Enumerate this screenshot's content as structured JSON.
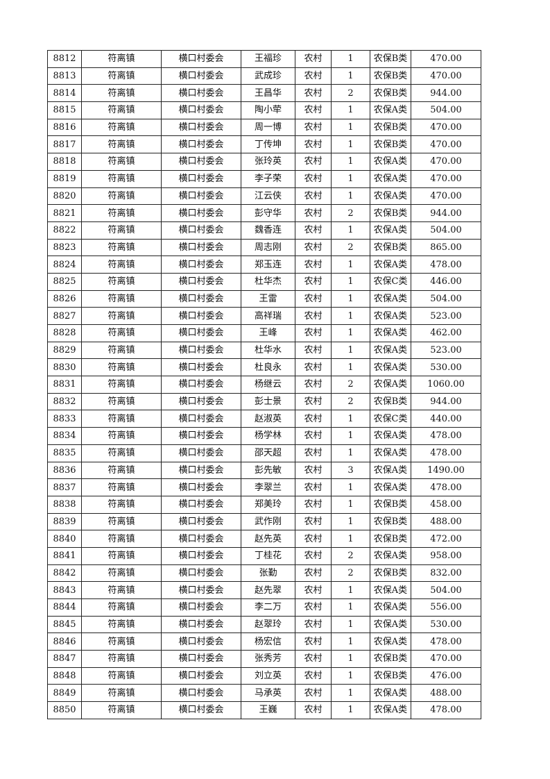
{
  "table": {
    "rows": [
      [
        "8812",
        "符离镇",
        "横口村委会",
        "王福珍",
        "农村",
        "1",
        "农保B类",
        "470.00"
      ],
      [
        "8813",
        "符离镇",
        "横口村委会",
        "武成珍",
        "农村",
        "1",
        "农保B类",
        "470.00"
      ],
      [
        "8814",
        "符离镇",
        "横口村委会",
        "王昌华",
        "农村",
        "2",
        "农保B类",
        "944.00"
      ],
      [
        "8815",
        "符离镇",
        "横口村委会",
        "陶小荦",
        "农村",
        "1",
        "农保A类",
        "504.00"
      ],
      [
        "8816",
        "符离镇",
        "横口村委会",
        "周一博",
        "农村",
        "1",
        "农保B类",
        "470.00"
      ],
      [
        "8817",
        "符离镇",
        "横口村委会",
        "丁传坤",
        "农村",
        "1",
        "农保B类",
        "470.00"
      ],
      [
        "8818",
        "符离镇",
        "横口村委会",
        "张玲英",
        "农村",
        "1",
        "农保A类",
        "470.00"
      ],
      [
        "8819",
        "符离镇",
        "横口村委会",
        "李子荣",
        "农村",
        "1",
        "农保A类",
        "470.00"
      ],
      [
        "8820",
        "符离镇",
        "横口村委会",
        "江云侠",
        "农村",
        "1",
        "农保A类",
        "470.00"
      ],
      [
        "8821",
        "符离镇",
        "横口村委会",
        "彭守华",
        "农村",
        "2",
        "农保B类",
        "944.00"
      ],
      [
        "8822",
        "符离镇",
        "横口村委会",
        "魏香连",
        "农村",
        "1",
        "农保A类",
        "504.00"
      ],
      [
        "8823",
        "符离镇",
        "横口村委会",
        "周志刚",
        "农村",
        "2",
        "农保B类",
        "865.00"
      ],
      [
        "8824",
        "符离镇",
        "横口村委会",
        "郑玉连",
        "农村",
        "1",
        "农保A类",
        "478.00"
      ],
      [
        "8825",
        "符离镇",
        "横口村委会",
        "杜华杰",
        "农村",
        "1",
        "农保C类",
        "446.00"
      ],
      [
        "8826",
        "符离镇",
        "横口村委会",
        "王雷",
        "农村",
        "1",
        "农保A类",
        "504.00"
      ],
      [
        "8827",
        "符离镇",
        "横口村委会",
        "高祥瑞",
        "农村",
        "1",
        "农保A类",
        "523.00"
      ],
      [
        "8828",
        "符离镇",
        "横口村委会",
        "王峰",
        "农村",
        "1",
        "农保A类",
        "462.00"
      ],
      [
        "8829",
        "符离镇",
        "横口村委会",
        "杜华水",
        "农村",
        "1",
        "农保A类",
        "523.00"
      ],
      [
        "8830",
        "符离镇",
        "横口村委会",
        "杜良永",
        "农村",
        "1",
        "农保A类",
        "530.00"
      ],
      [
        "8831",
        "符离镇",
        "横口村委会",
        "杨继云",
        "农村",
        "2",
        "农保A类",
        "1060.00"
      ],
      [
        "8832",
        "符离镇",
        "横口村委会",
        "彭士景",
        "农村",
        "2",
        "农保B类",
        "944.00"
      ],
      [
        "8833",
        "符离镇",
        "横口村委会",
        "赵淑英",
        "农村",
        "1",
        "农保C类",
        "440.00"
      ],
      [
        "8834",
        "符离镇",
        "横口村委会",
        "杨学林",
        "农村",
        "1",
        "农保A类",
        "478.00"
      ],
      [
        "8835",
        "符离镇",
        "横口村委会",
        "邵天超",
        "农村",
        "1",
        "农保A类",
        "478.00"
      ],
      [
        "8836",
        "符离镇",
        "横口村委会",
        "彭先敏",
        "农村",
        "3",
        "农保A类",
        "1490.00"
      ],
      [
        "8837",
        "符离镇",
        "横口村委会",
        "李翠兰",
        "农村",
        "1",
        "农保A类",
        "478.00"
      ],
      [
        "8838",
        "符离镇",
        "横口村委会",
        "郑美玲",
        "农村",
        "1",
        "农保B类",
        "458.00"
      ],
      [
        "8839",
        "符离镇",
        "横口村委会",
        "武作刚",
        "农村",
        "1",
        "农保B类",
        "488.00"
      ],
      [
        "8840",
        "符离镇",
        "横口村委会",
        "赵先英",
        "农村",
        "1",
        "农保B类",
        "472.00"
      ],
      [
        "8841",
        "符离镇",
        "横口村委会",
        "丁桂花",
        "农村",
        "2",
        "农保A类",
        "958.00"
      ],
      [
        "8842",
        "符离镇",
        "横口村委会",
        "张勤",
        "农村",
        "2",
        "农保B类",
        "832.00"
      ],
      [
        "8843",
        "符离镇",
        "横口村委会",
        "赵先翠",
        "农村",
        "1",
        "农保A类",
        "504.00"
      ],
      [
        "8844",
        "符离镇",
        "横口村委会",
        "李二万",
        "农村",
        "1",
        "农保A类",
        "556.00"
      ],
      [
        "8845",
        "符离镇",
        "横口村委会",
        "赵翠玲",
        "农村",
        "1",
        "农保A类",
        "530.00"
      ],
      [
        "8846",
        "符离镇",
        "横口村委会",
        "杨宏信",
        "农村",
        "1",
        "农保A类",
        "478.00"
      ],
      [
        "8847",
        "符离镇",
        "横口村委会",
        "张秀芳",
        "农村",
        "1",
        "农保B类",
        "470.00"
      ],
      [
        "8848",
        "符离镇",
        "横口村委会",
        "刘立英",
        "农村",
        "1",
        "农保B类",
        "476.00"
      ],
      [
        "8849",
        "符离镇",
        "横口村委会",
        "马承英",
        "农村",
        "1",
        "农保A类",
        "488.00"
      ],
      [
        "8850",
        "符离镇",
        "横口村委会",
        "王巍",
        "农村",
        "1",
        "农保A类",
        "478.00"
      ]
    ]
  }
}
